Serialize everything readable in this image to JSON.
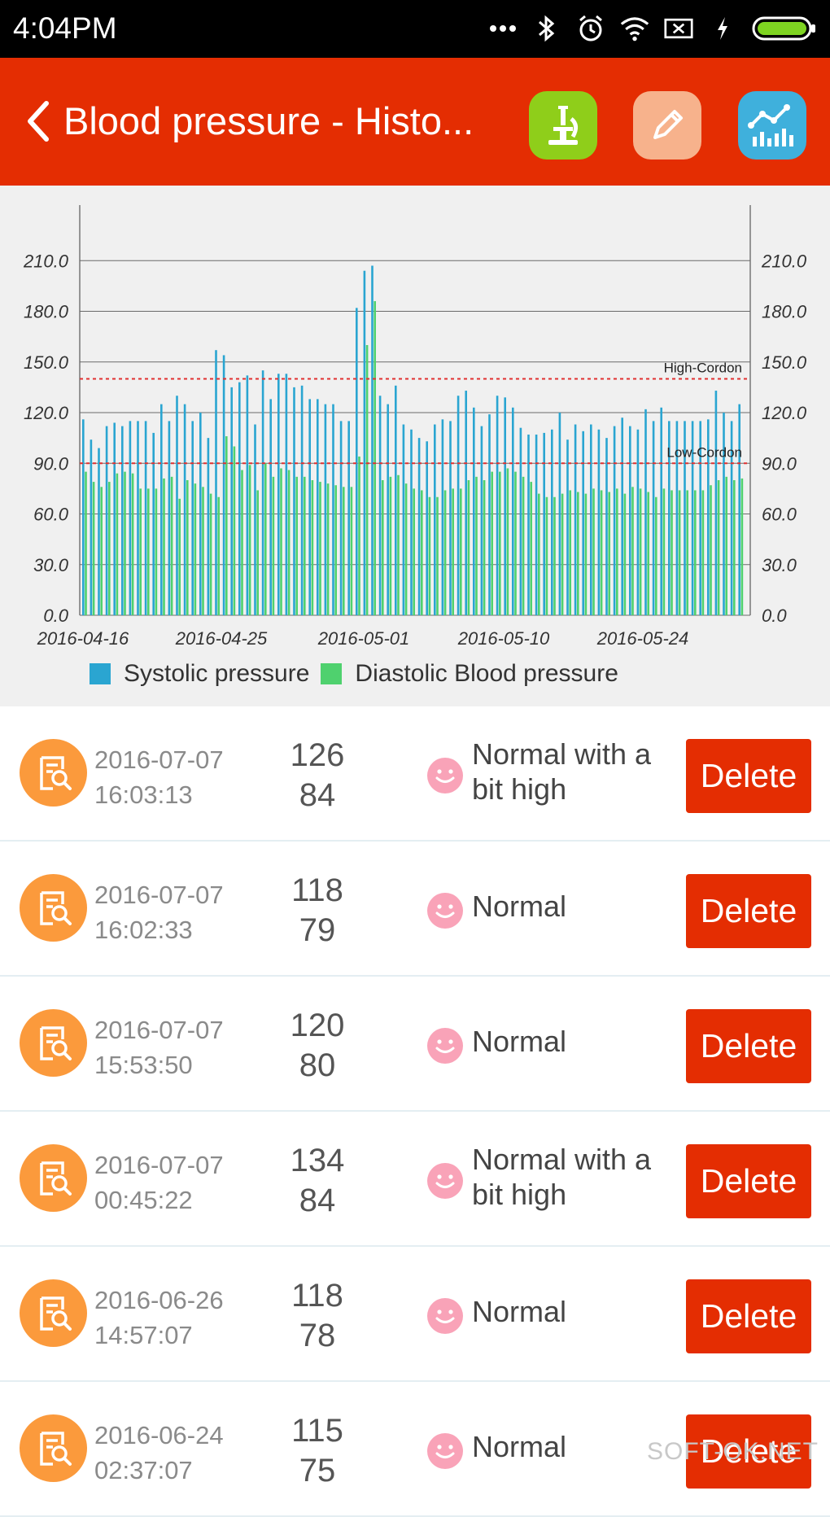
{
  "status_bar": {
    "time": "4:04PM"
  },
  "app_bar": {
    "title": "Blood pressure - Histo...",
    "colors": {
      "bg": "#e42d02",
      "microscope_btn": "#8fce1a",
      "edit_btn": "#f7b28c",
      "chart_btn": "#3fb0dc"
    }
  },
  "chart_data": {
    "type": "bar",
    "title": "",
    "y_ticks": [
      "0.0",
      "30.0",
      "60.0",
      "90.0",
      "120.0",
      "150.0",
      "180.0",
      "210.0"
    ],
    "x_tick_labels": [
      "2016-04-16",
      "2016-04-25",
      "2016-05-01",
      "2016-05-10",
      "2016-05-24"
    ],
    "ylim": [
      0,
      240
    ],
    "reference_lines": [
      {
        "label": "High-Cordon",
        "value": 140,
        "color": "#e03030"
      },
      {
        "label": "Low-Cordon",
        "value": 90,
        "color": "#e03030"
      }
    ],
    "legend": [
      "Systolic pressure",
      "Diastolic Blood pressure"
    ],
    "series": [
      {
        "name": "Systolic pressure",
        "color": "#2aa5d1",
        "values": [
          116,
          104,
          99,
          112,
          114,
          112,
          115,
          115,
          115,
          108,
          125,
          115,
          130,
          125,
          115,
          120,
          105,
          157,
          154,
          135,
          138,
          142,
          113,
          145,
          128,
          143,
          143,
          135,
          136,
          128,
          128,
          125,
          125,
          115,
          115,
          182,
          204,
          207,
          130,
          125,
          136,
          113,
          110,
          105,
          103,
          113,
          116,
          115,
          130,
          133,
          123,
          112,
          119,
          130,
          129,
          123,
          111,
          107,
          107,
          108,
          110,
          120,
          104,
          113,
          109,
          113,
          110,
          105,
          112,
          117,
          112,
          110,
          122,
          115,
          123,
          115,
          115,
          115,
          115,
          115,
          116,
          133,
          120,
          115,
          125
        ]
      },
      {
        "name": "Diastolic Blood pressure",
        "color": "#4fd16e",
        "values": [
          85,
          79,
          76,
          79,
          84,
          85,
          84,
          75,
          75,
          75,
          81,
          82,
          69,
          80,
          78,
          76,
          72,
          70,
          106,
          100,
          86,
          89,
          74,
          90,
          82,
          87,
          86,
          82,
          82,
          80,
          79,
          78,
          77,
          76,
          76,
          94,
          160,
          186,
          80,
          82,
          83,
          78,
          75,
          74,
          70,
          70,
          74,
          75,
          75,
          80,
          82,
          80,
          85,
          85,
          87,
          85,
          82,
          79,
          72,
          70,
          70,
          72,
          74,
          73,
          72,
          75,
          74,
          73,
          75,
          72,
          76,
          75,
          73,
          70,
          75,
          74,
          74,
          74,
          74,
          74,
          77,
          80,
          82,
          80,
          81
        ]
      }
    ]
  },
  "records": [
    {
      "date": "2016-07-07",
      "time": "16:03:13",
      "systolic": "126",
      "diastolic": "84",
      "status": "Normal with a bit high",
      "delete_label": "Delete"
    },
    {
      "date": "2016-07-07",
      "time": "16:02:33",
      "systolic": "118",
      "diastolic": "79",
      "status": "Normal",
      "delete_label": "Delete"
    },
    {
      "date": "2016-07-07",
      "time": "15:53:50",
      "systolic": "120",
      "diastolic": "80",
      "status": "Normal",
      "delete_label": "Delete"
    },
    {
      "date": "2016-07-07",
      "time": "00:45:22",
      "systolic": "134",
      "diastolic": "84",
      "status": "Normal with a bit high",
      "delete_label": "Delete"
    },
    {
      "date": "2016-06-26",
      "time": "14:57:07",
      "systolic": "118",
      "diastolic": "78",
      "status": "Normal",
      "delete_label": "Delete"
    },
    {
      "date": "2016-06-24",
      "time": "02:37:07",
      "systolic": "115",
      "diastolic": "75",
      "status": "Normal",
      "delete_label": "Delete"
    }
  ],
  "watermark": "SOFT-OK.NET"
}
